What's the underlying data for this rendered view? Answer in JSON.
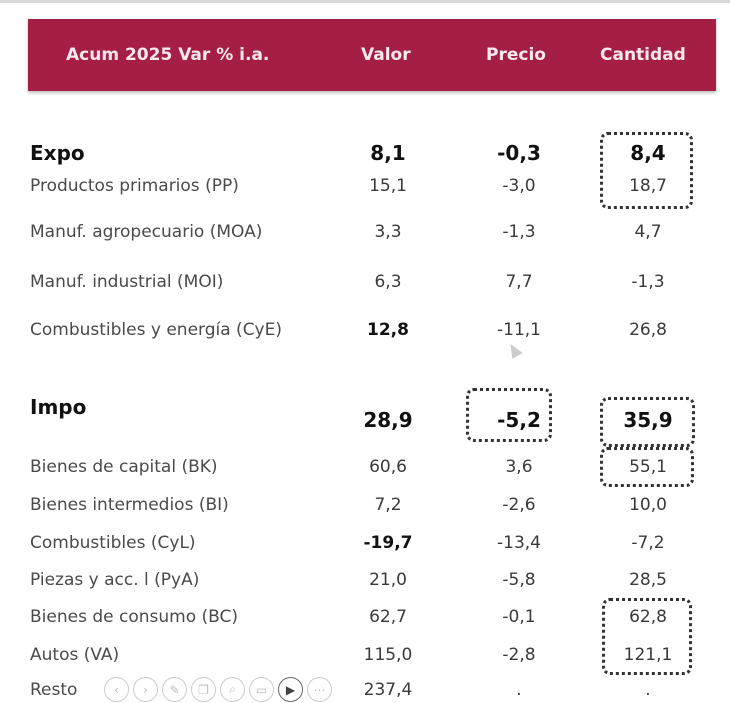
{
  "header": {
    "label_col": "Acum 2025 Var % i.a.",
    "valor": "Valor",
    "precio": "Precio",
    "cantidad": "Cantidad"
  },
  "colors": {
    "header_bg": "#a51f45"
  },
  "rows": [
    {
      "label": "Expo",
      "valor": "8,1",
      "precio": "-0,3",
      "cantidad": "8,4",
      "bold": true
    },
    {
      "label": "Productos primarios (PP)",
      "valor": "15,1",
      "precio": "-3,0",
      "cantidad": "18,7"
    },
    {
      "label": "Manuf. agropecuario (MOA)",
      "valor": "3,3",
      "precio": "-1,3",
      "cantidad": "4,7"
    },
    {
      "label": "Manuf. industrial (MOI)",
      "valor": "6,3",
      "precio": "7,7",
      "cantidad": "-1,3"
    },
    {
      "label": "Combustibles y energía (CyE)",
      "valor": "12,8",
      "precio": "-11,1",
      "cantidad": "26,8",
      "valor_bold": true
    },
    {
      "label": "Impo",
      "valor": "28,9",
      "precio": "-5,2",
      "cantidad": "35,9",
      "bold": true
    },
    {
      "label": "Bienes de capital (BK)",
      "valor": "60,6",
      "precio": "3,6",
      "cantidad": "55,1"
    },
    {
      "label": "Bienes intermedios (BI)",
      "valor": "7,2",
      "precio": "-2,6",
      "cantidad": "10,0"
    },
    {
      "label": "Combustibles (CyL)",
      "valor": "-19,7",
      "precio": "-13,4",
      "cantidad": "-7,2",
      "valor_bold": true
    },
    {
      "label": "Piezas y acc. l (PyA)",
      "valor": "21,0",
      "precio": "-5,8",
      "cantidad": "28,5"
    },
    {
      "label": "Bienes de consumo (BC)",
      "valor": "62,7",
      "precio": "-0,1",
      "cantidad": "62,8"
    },
    {
      "label": "Autos (VA)",
      "valor": "115,0",
      "precio": "-2,8",
      "cantidad": "121,1"
    },
    {
      "label": "Resto",
      "valor": "237,4",
      "precio": ".",
      "cantidad": "."
    }
  ],
  "toolbar": [
    "back-icon",
    "forward-icon",
    "pen-icon",
    "copy-icon",
    "search-icon",
    "slides-icon",
    "video-icon",
    "more-icon"
  ]
}
